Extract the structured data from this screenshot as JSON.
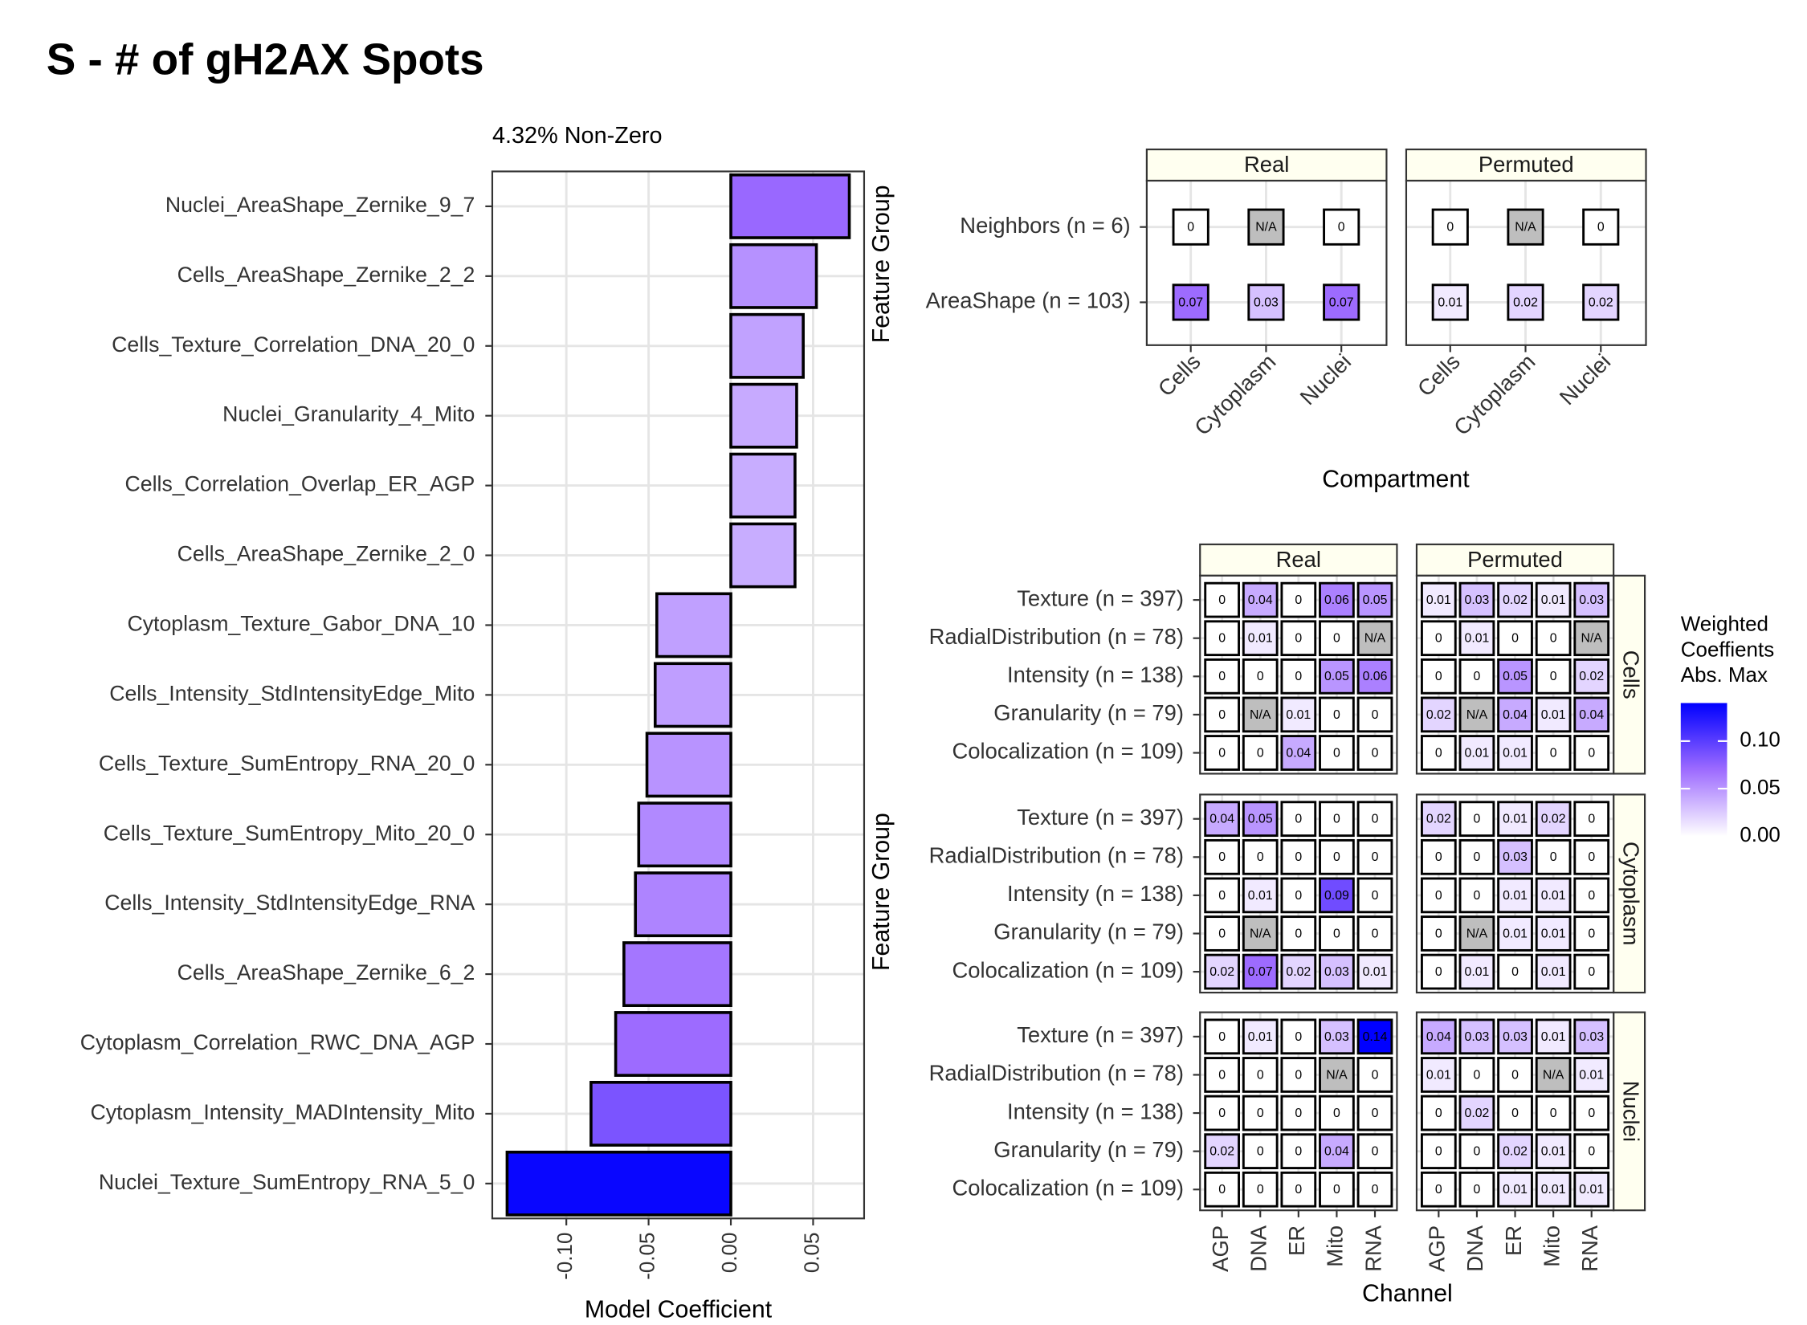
{
  "title": "S - # of gH2AX Spots",
  "colorbar": {
    "title": [
      "Weighted",
      "Coeffients",
      "Abs. Max"
    ],
    "limits": [
      0,
      0.14
    ],
    "colors": [
      "#ffffff",
      "#9d6bff",
      "#0000ff"
    ],
    "ticks": [
      {
        "value": 0,
        "label": "0.00"
      },
      {
        "value": 0.05,
        "label": "0.05"
      },
      {
        "value": 0.1,
        "label": "0.10"
      }
    ]
  },
  "chart_data": [
    {
      "type": "bar",
      "orientation": "horizontal",
      "subtitle": "4.32% Non-Zero",
      "x_label": "Model Coefficient",
      "categories": [
        "Nuclei_AreaShape_Zernike_9_7",
        "Cells_AreaShape_Zernike_2_2",
        "Cells_Texture_Correlation_DNA_20_0",
        "Nuclei_Granularity_4_Mito",
        "Cells_Correlation_Overlap_ER_AGP",
        "Cells_AreaShape_Zernike_2_0",
        "Cytoplasm_Texture_Gabor_DNA_10",
        "Cells_Intensity_StdIntensityEdge_Mito",
        "Cells_Texture_SumEntropy_RNA_20_0",
        "Cells_Texture_SumEntropy_Mito_20_0",
        "Cells_Intensity_StdIntensityEdge_RNA",
        "Cells_AreaShape_Zernike_6_2",
        "Cytoplasm_Correlation_RWC_DNA_AGP",
        "Cytoplasm_Intensity_MADIntensity_Mito",
        "Nuclei_Texture_SumEntropy_RNA_5_0"
      ],
      "values": [
        0.072,
        0.052,
        0.044,
        0.04,
        0.039,
        0.039,
        -0.045,
        -0.046,
        -0.051,
        -0.056,
        -0.058,
        -0.065,
        -0.07,
        -0.085,
        -0.136
      ],
      "xlim": [
        -0.145,
        0.081
      ],
      "xticks": [
        {
          "value": -0.1,
          "label": "-0.10"
        },
        {
          "value": -0.05,
          "label": "-0.05"
        },
        {
          "value": 0,
          "label": "0.00"
        },
        {
          "value": 0.05,
          "label": "0.05"
        }
      ],
      "grid": true
    },
    {
      "type": "heatmap",
      "x_label": "Compartment",
      "y_label": "Feature Group",
      "na_label": "N/A",
      "col_facets": [
        "Real",
        "Permuted"
      ],
      "rows": [
        "Neighbors (n = 6)",
        "AreaShape (n = 103)"
      ],
      "columns": [
        "Cells",
        "Cytoplasm",
        "Nuclei"
      ],
      "values": [
        [
          [
            [
              0,
              null,
              0
            ],
            [
              0.07,
              0.03,
              0.07
            ]
          ],
          [
            [
              0,
              null,
              0
            ],
            [
              0.01,
              0.02,
              0.02
            ]
          ]
        ]
      ]
    },
    {
      "type": "heatmap",
      "x_label": "Channel",
      "y_label": "Feature Group",
      "na_label": "N/A",
      "col_facets": [
        "Real",
        "Permuted"
      ],
      "row_facets": [
        "Cells",
        "Cytoplasm",
        "Nuclei"
      ],
      "rows": [
        "Texture (n = 397)",
        "RadialDistribution (n = 78)",
        "Intensity (n = 138)",
        "Granularity (n = 79)",
        "Colocalization (n = 109)"
      ],
      "columns": [
        "AGP",
        "DNA",
        "ER",
        "Mito",
        "RNA"
      ],
      "values": [
        [
          [
            [
              0,
              0.04,
              0,
              0.06,
              0.05
            ],
            [
              0,
              0.01,
              0,
              0,
              null
            ],
            [
              0,
              0,
              0,
              0.05,
              0.06
            ],
            [
              0,
              null,
              0.01,
              0,
              0
            ],
            [
              0,
              0,
              0.04,
              0,
              0
            ]
          ],
          [
            [
              0.01,
              0.03,
              0.02,
              0.01,
              0.03
            ],
            [
              0,
              0.01,
              0,
              0,
              null
            ],
            [
              0,
              0,
              0.05,
              0,
              0.02
            ],
            [
              0.02,
              null,
              0.04,
              0.01,
              0.04
            ],
            [
              0,
              0.01,
              0.01,
              0,
              0
            ]
          ]
        ],
        [
          [
            [
              0.04,
              0.05,
              0,
              0,
              0
            ],
            [
              0,
              0,
              0,
              0,
              0
            ],
            [
              0,
              0.01,
              0,
              0.09,
              0
            ],
            [
              0,
              null,
              0,
              0,
              0
            ],
            [
              0.02,
              0.07,
              0.02,
              0.03,
              0.01
            ]
          ],
          [
            [
              0.02,
              0,
              0.01,
              0.02,
              0
            ],
            [
              0,
              0,
              0.03,
              0,
              0
            ],
            [
              0,
              0,
              0.01,
              0.01,
              0
            ],
            [
              0,
              null,
              0.01,
              0.01,
              0
            ],
            [
              0,
              0.01,
              0,
              0.01,
              0
            ]
          ]
        ],
        [
          [
            [
              0,
              0.01,
              0,
              0.03,
              0.14
            ],
            [
              0,
              0,
              0,
              null,
              0
            ],
            [
              0,
              0,
              0,
              0,
              0
            ],
            [
              0.02,
              0,
              0,
              0.04,
              0
            ],
            [
              0,
              0,
              0,
              0,
              0
            ]
          ],
          [
            [
              0.04,
              0.03,
              0.03,
              0.01,
              0.03
            ],
            [
              0.01,
              0,
              0,
              null,
              0.01
            ],
            [
              0,
              0.02,
              0,
              0,
              0
            ],
            [
              0,
              0,
              0.02,
              0.01,
              0
            ],
            [
              0,
              0,
              0.01,
              0.01,
              0.01
            ]
          ]
        ]
      ]
    }
  ]
}
